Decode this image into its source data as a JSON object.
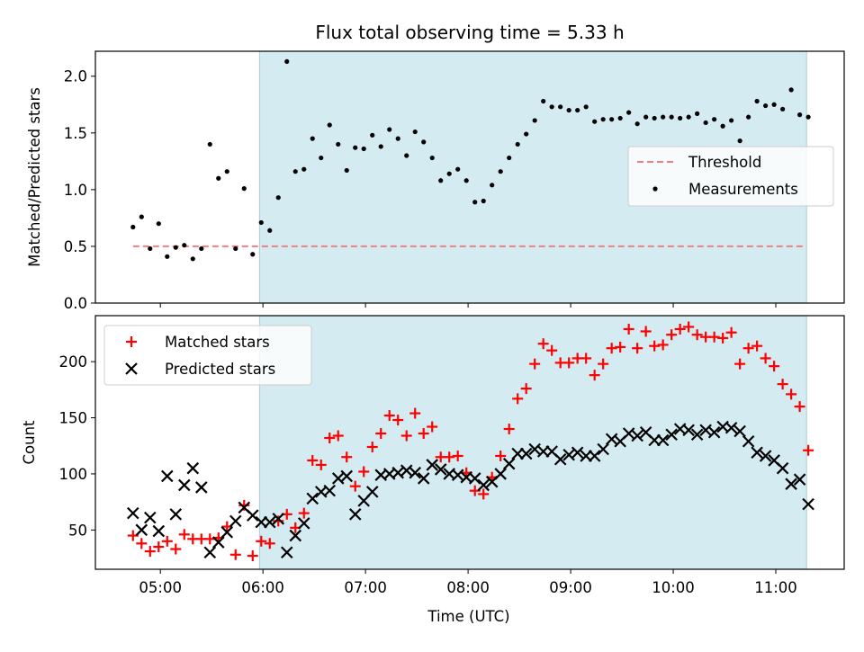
{
  "title": "Flux total observing time = 5.33 h",
  "colors": {
    "observing_band": "#d4ebf1",
    "observing_band_edge": "#a9cdd6",
    "threshold": "#f08080",
    "measurements": "#000000",
    "matched": "#ff0000",
    "predicted": "#000000"
  },
  "chart_data": [
    {
      "type": "scatter",
      "panel": "top",
      "ylabel": "Matched/Predicted stars",
      "xlabel": "",
      "x_range": [
        "04:22",
        "11:40"
      ],
      "ylim": [
        0,
        2.22
      ],
      "y_ticks": [
        "0.0",
        "0.5",
        "1.0",
        "1.5",
        "2.0"
      ],
      "grid": false,
      "legend_placement": "center-right",
      "observing_band": [
        "05:58",
        "11:18"
      ],
      "threshold": {
        "name": "Threshold",
        "value": 0.5,
        "x_range": [
          "04:44",
          "11:18"
        ]
      },
      "series": [
        {
          "name": "Measurements",
          "points": [
            [
              "04:44",
              0.67
            ],
            [
              "04:49",
              0.76
            ],
            [
              "04:54",
              0.48
            ],
            [
              "04:59",
              0.7
            ],
            [
              "05:04",
              0.41
            ],
            [
              "05:09",
              0.49
            ],
            [
              "05:14",
              0.51
            ],
            [
              "05:19",
              0.39
            ],
            [
              "05:24",
              0.48
            ],
            [
              "05:29",
              1.4
            ],
            [
              "05:34",
              1.1
            ],
            [
              "05:39",
              1.16
            ],
            [
              "05:44",
              0.48
            ],
            [
              "05:49",
              1.01
            ],
            [
              "05:54",
              0.43
            ],
            [
              "05:59",
              0.71
            ],
            [
              "06:04",
              0.64
            ],
            [
              "06:09",
              0.93
            ],
            [
              "06:14",
              2.13
            ],
            [
              "06:19",
              1.16
            ],
            [
              "06:24",
              1.18
            ],
            [
              "06:29",
              1.45
            ],
            [
              "06:34",
              1.28
            ],
            [
              "06:39",
              1.57
            ],
            [
              "06:44",
              1.4
            ],
            [
              "06:49",
              1.17
            ],
            [
              "06:54",
              1.37
            ],
            [
              "06:59",
              1.36
            ],
            [
              "07:04",
              1.48
            ],
            [
              "07:09",
              1.38
            ],
            [
              "07:14",
              1.53
            ],
            [
              "07:19",
              1.45
            ],
            [
              "07:24",
              1.3
            ],
            [
              "07:29",
              1.51
            ],
            [
              "07:34",
              1.42
            ],
            [
              "07:39",
              1.28
            ],
            [
              "07:44",
              1.08
            ],
            [
              "07:49",
              1.14
            ],
            [
              "07:54",
              1.18
            ],
            [
              "07:59",
              1.08
            ],
            [
              "08:04",
              0.89
            ],
            [
              "08:09",
              0.9
            ],
            [
              "08:14",
              1.04
            ],
            [
              "08:19",
              1.16
            ],
            [
              "08:24",
              1.28
            ],
            [
              "08:29",
              1.4
            ],
            [
              "08:34",
              1.49
            ],
            [
              "08:39",
              1.61
            ],
            [
              "08:44",
              1.78
            ],
            [
              "08:49",
              1.73
            ],
            [
              "08:54",
              1.73
            ],
            [
              "08:59",
              1.7
            ],
            [
              "09:04",
              1.7
            ],
            [
              "09:09",
              1.73
            ],
            [
              "09:14",
              1.6
            ],
            [
              "09:19",
              1.62
            ],
            [
              "09:24",
              1.62
            ],
            [
              "09:29",
              1.63
            ],
            [
              "09:34",
              1.68
            ],
            [
              "09:39",
              1.58
            ],
            [
              "09:44",
              1.64
            ],
            [
              "09:49",
              1.63
            ],
            [
              "09:54",
              1.64
            ],
            [
              "09:59",
              1.64
            ],
            [
              "10:04",
              1.63
            ],
            [
              "10:09",
              1.64
            ],
            [
              "10:14",
              1.67
            ],
            [
              "10:19",
              1.59
            ],
            [
              "10:24",
              1.62
            ],
            [
              "10:29",
              1.56
            ],
            [
              "10:34",
              1.61
            ],
            [
              "10:39",
              1.43
            ],
            [
              "10:44",
              1.64
            ],
            [
              "10:49",
              1.78
            ],
            [
              "10:54",
              1.74
            ],
            [
              "10:59",
              1.75
            ],
            [
              "11:04",
              1.71
            ],
            [
              "11:09",
              1.88
            ],
            [
              "11:14",
              1.66
            ],
            [
              "11:19",
              1.64
            ]
          ]
        }
      ]
    },
    {
      "type": "scatter",
      "panel": "bottom",
      "ylabel": "Count",
      "xlabel": "Time (UTC)",
      "x_range": [
        "04:22",
        "11:40"
      ],
      "x_ticks": [
        "05:00",
        "06:00",
        "07:00",
        "08:00",
        "09:00",
        "10:00",
        "11:00"
      ],
      "ylim": [
        15,
        241
      ],
      "y_ticks": [
        "50",
        "100",
        "150",
        "200"
      ],
      "grid": false,
      "legend_placement": "upper-left",
      "observing_band": [
        "05:58",
        "11:18"
      ],
      "series": [
        {
          "name": "Matched stars",
          "marker": "plus",
          "points": [
            [
              "04:44",
              45
            ],
            [
              "04:49",
              38
            ],
            [
              "04:54",
              31
            ],
            [
              "04:59",
              35
            ],
            [
              "05:04",
              40
            ],
            [
              "05:09",
              33
            ],
            [
              "05:14",
              46
            ],
            [
              "05:19",
              42
            ],
            [
              "05:24",
              42
            ],
            [
              "05:29",
              42
            ],
            [
              "05:34",
              43
            ],
            [
              "05:39",
              53
            ],
            [
              "05:44",
              28
            ],
            [
              "05:49",
              72
            ],
            [
              "05:54",
              27
            ],
            [
              "05:59",
              40
            ],
            [
              "06:04",
              38
            ],
            [
              "06:09",
              58
            ],
            [
              "06:14",
              64
            ],
            [
              "06:19",
              52
            ],
            [
              "06:24",
              65
            ],
            [
              "06:29",
              112
            ],
            [
              "06:34",
              108
            ],
            [
              "06:39",
              132
            ],
            [
              "06:44",
              134
            ],
            [
              "06:49",
              115
            ],
            [
              "06:54",
              89
            ],
            [
              "06:59",
              102
            ],
            [
              "07:04",
              124
            ],
            [
              "07:09",
              136
            ],
            [
              "07:14",
              152
            ],
            [
              "07:19",
              148
            ],
            [
              "07:24",
              134
            ],
            [
              "07:29",
              154
            ],
            [
              "07:34",
              136
            ],
            [
              "07:39",
              142
            ],
            [
              "07:44",
              115
            ],
            [
              "07:49",
              115
            ],
            [
              "07:54",
              116
            ],
            [
              "07:59",
              101
            ],
            [
              "08:04",
              85
            ],
            [
              "08:09",
              82
            ],
            [
              "08:14",
              97
            ],
            [
              "08:19",
              116
            ],
            [
              "08:24",
              140
            ],
            [
              "08:29",
              167
            ],
            [
              "08:34",
              176
            ],
            [
              "08:39",
              198
            ],
            [
              "08:44",
              216
            ],
            [
              "08:49",
              210
            ],
            [
              "08:54",
              199
            ],
            [
              "08:59",
              199
            ],
            [
              "09:04",
              203
            ],
            [
              "09:09",
              203
            ],
            [
              "09:14",
              188
            ],
            [
              "09:19",
              198
            ],
            [
              "09:24",
              212
            ],
            [
              "09:29",
              213
            ],
            [
              "09:34",
              229
            ],
            [
              "09:39",
              212
            ],
            [
              "09:44",
              227
            ],
            [
              "09:49",
              214
            ],
            [
              "09:54",
              215
            ],
            [
              "09:59",
              224
            ],
            [
              "10:04",
              229
            ],
            [
              "10:09",
              231
            ],
            [
              "10:14",
              224
            ],
            [
              "10:19",
              222
            ],
            [
              "10:24",
              222
            ],
            [
              "10:29",
              221
            ],
            [
              "10:34",
              226
            ],
            [
              "10:39",
              198
            ],
            [
              "10:44",
              212
            ],
            [
              "10:49",
              214
            ],
            [
              "10:54",
              203
            ],
            [
              "10:59",
              196
            ],
            [
              "11:04",
              180
            ],
            [
              "11:09",
              171
            ],
            [
              "11:14",
              160
            ],
            [
              "11:19",
              121
            ]
          ]
        },
        {
          "name": "Predicted stars",
          "marker": "x",
          "points": [
            [
              "04:44",
              65
            ],
            [
              "04:49",
              50
            ],
            [
              "04:54",
              61
            ],
            [
              "04:59",
              49
            ],
            [
              "05:04",
              98
            ],
            [
              "05:09",
              64
            ],
            [
              "05:14",
              90
            ],
            [
              "05:19",
              105
            ],
            [
              "05:24",
              88
            ],
            [
              "05:29",
              30
            ],
            [
              "05:34",
              39
            ],
            [
              "05:39",
              48
            ],
            [
              "05:44",
              58
            ],
            [
              "05:49",
              70
            ],
            [
              "05:54",
              63
            ],
            [
              "05:59",
              57
            ],
            [
              "06:04",
              57
            ],
            [
              "06:09",
              60
            ],
            [
              "06:14",
              30
            ],
            [
              "06:19",
              45
            ],
            [
              "06:24",
              56
            ],
            [
              "06:29",
              78
            ],
            [
              "06:34",
              84
            ],
            [
              "06:39",
              85
            ],
            [
              "06:44",
              96
            ],
            [
              "06:49",
              98
            ],
            [
              "06:54",
              64
            ],
            [
              "06:59",
              76
            ],
            [
              "07:04",
              84
            ],
            [
              "07:09",
              99
            ],
            [
              "07:14",
              100
            ],
            [
              "07:19",
              101
            ],
            [
              "07:24",
              103
            ],
            [
              "07:29",
              101
            ],
            [
              "07:34",
              96
            ],
            [
              "07:39",
              108
            ],
            [
              "07:44",
              104
            ],
            [
              "07:49",
              100
            ],
            [
              "07:54",
              99
            ],
            [
              "07:59",
              97
            ],
            [
              "08:04",
              96
            ],
            [
              "08:09",
              90
            ],
            [
              "08:14",
              93
            ],
            [
              "08:19",
              100
            ],
            [
              "08:24",
              109
            ],
            [
              "08:29",
              118
            ],
            [
              "08:34",
              118
            ],
            [
              "08:39",
              122
            ],
            [
              "08:44",
              120
            ],
            [
              "08:49",
              120
            ],
            [
              "08:54",
              113
            ],
            [
              "08:59",
              117
            ],
            [
              "09:04",
              119
            ],
            [
              "09:09",
              116
            ],
            [
              "09:14",
              116
            ],
            [
              "09:19",
              122
            ],
            [
              "09:24",
              131
            ],
            [
              "09:29",
              129
            ],
            [
              "09:34",
              136
            ],
            [
              "09:39",
              134
            ],
            [
              "09:44",
              137
            ],
            [
              "09:49",
              130
            ],
            [
              "09:54",
              130
            ],
            [
              "09:59",
              135
            ],
            [
              "10:04",
              140
            ],
            [
              "10:09",
              139
            ],
            [
              "10:14",
              135
            ],
            [
              "10:19",
              139
            ],
            [
              "10:24",
              137
            ],
            [
              "10:29",
              142
            ],
            [
              "10:34",
              141
            ],
            [
              "10:39",
              138
            ],
            [
              "10:44",
              129
            ],
            [
              "10:49",
              119
            ],
            [
              "10:54",
              116
            ],
            [
              "10:59",
              112
            ],
            [
              "11:04",
              105
            ],
            [
              "11:09",
              91
            ],
            [
              "11:14",
              95
            ],
            [
              "11:19",
              73
            ]
          ]
        }
      ]
    }
  ]
}
